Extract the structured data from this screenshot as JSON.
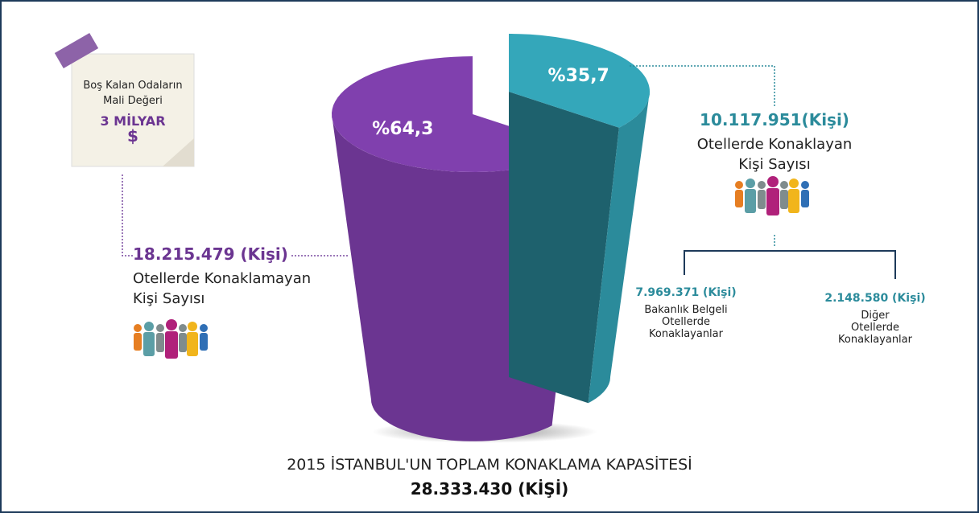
{
  "chart_data": {
    "type": "pie",
    "values": [
      64.3,
      35.7
    ],
    "value_labels": [
      "%64,3",
      "%35,7"
    ],
    "colors": [
      "#6b3591",
      "#2b8b9b"
    ],
    "title": "2015 İSTANBUL'UN TOPLAM KONAKLAMA KAPASİTESİ",
    "total_label": "28.333.430 (KİŞİ)",
    "annotations": {
      "note": [
        "Boş Kalan Odaların",
        "Mali Değeri",
        "3 MİLYAR",
        "$"
      ],
      "left": [
        "18.215.479 (Kişi)",
        "Otellerde Konaklamayan",
        "Kişi Sayısı"
      ],
      "right": [
        "10.117.951(Kişi)",
        "Otellerde Konaklayan",
        "Kişi Sayısı"
      ],
      "sub1": [
        "7.969.371 (Kişi)",
        "Bakanlık Belgeli",
        "Otellerde",
        "Konaklayanlar"
      ],
      "sub2": [
        "2.148.580 (Kişi)",
        "Diğer",
        "Otellerde",
        "Konaklayanlar"
      ]
    }
  }
}
